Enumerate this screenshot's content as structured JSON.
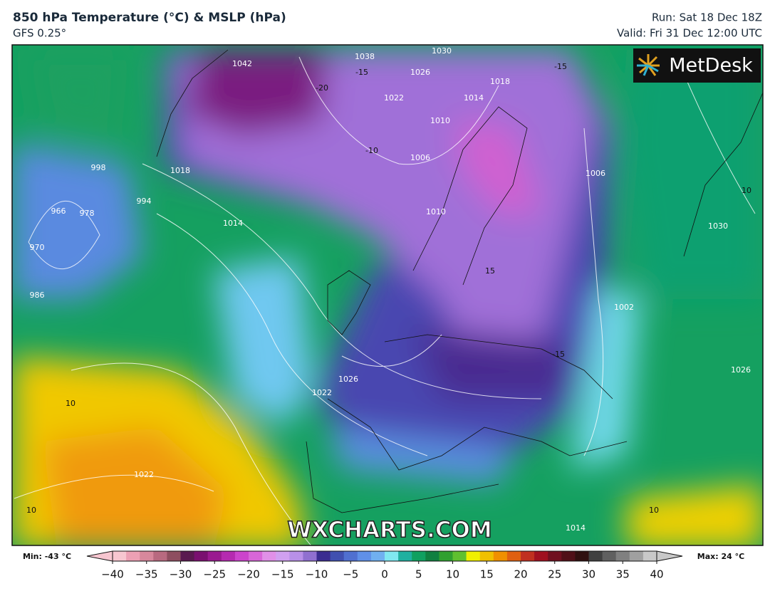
{
  "header": {
    "title": "850 hPa Temperature (°C) & MSLP (hPa)",
    "model": "GFS 0.25°",
    "run": "Run: Sat 18 Dec 18Z",
    "valid": "Valid: Fri 31 Dec 12:00 UTC"
  },
  "logo": "MetDesk",
  "watermark": "WXCHARTS.COM",
  "map": {
    "contour_labels": [
      1042,
      1038,
      1030,
      1026,
      1022,
      1018,
      1014,
      1010,
      1006,
      1018,
      1014,
      998,
      994,
      978,
      966,
      970,
      986,
      1010,
      1022,
      1026,
      1022,
      1002,
      1006,
      1030,
      1026,
      1014,
      10,
      10,
      10,
      10,
      -15,
      -15,
      -10,
      -20,
      15,
      -15
    ]
  },
  "colorbar": {
    "min_label": "Min: -43 °C",
    "max_label": "Max: 24 °C",
    "range": [
      -40,
      40
    ],
    "colors": [
      "#f7c6d0",
      "#eca0b4",
      "#d7889c",
      "#b86a80",
      "#8e4e60",
      "#5a1a50",
      "#7a1070",
      "#9a1a90",
      "#b52ab0",
      "#cc44cc",
      "#d866d8",
      "#e090e8",
      "#d0a0f0",
      "#b890e8",
      "#9070d0",
      "#3a2c90",
      "#4050b0",
      "#5070d0",
      "#6090e8",
      "#70b0f0",
      "#80e8f0",
      "#20b0a0",
      "#10a060",
      "#108040",
      "#30a030",
      "#60c030",
      "#f0f000",
      "#f0c000",
      "#f09000",
      "#e06010",
      "#c03020",
      "#a01020",
      "#701020",
      "#501018",
      "#301010",
      "#404040",
      "#606060",
      "#808080",
      "#a0a0a0",
      "#c8c8c8"
    ],
    "ticks": [
      {
        "value": -40,
        "label": "−40"
      },
      {
        "value": -35,
        "label": "−35"
      },
      {
        "value": -30,
        "label": "−30"
      },
      {
        "value": -25,
        "label": "−25"
      },
      {
        "value": -20,
        "label": "−20"
      },
      {
        "value": -15,
        "label": "−15"
      },
      {
        "value": -10,
        "label": "−10"
      },
      {
        "value": -5,
        "label": "−5"
      },
      0,
      5,
      10,
      15,
      20,
      25,
      30,
      35,
      40
    ]
  }
}
